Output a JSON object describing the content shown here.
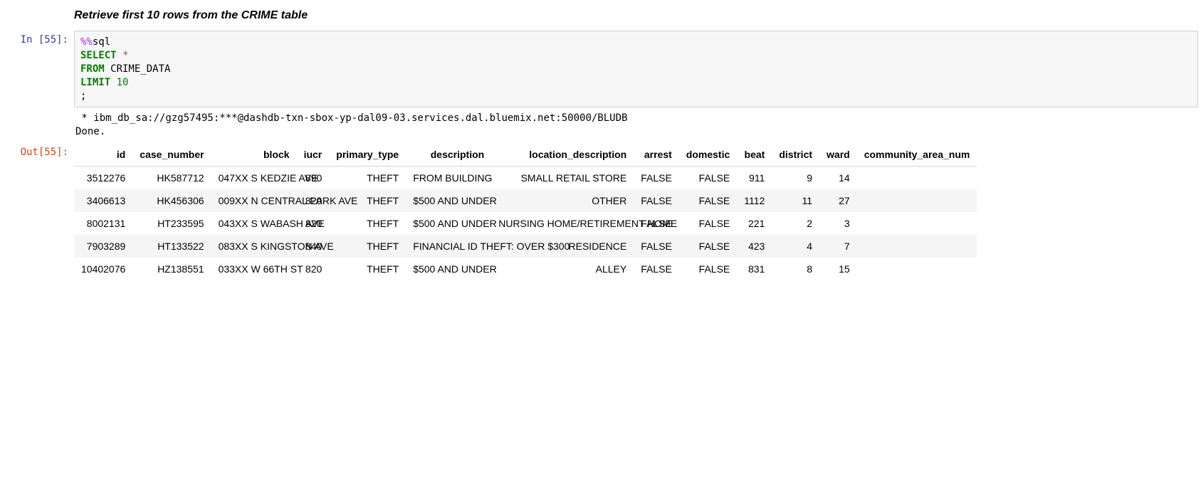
{
  "markdown": {
    "heading": "Retrieve first 10 rows from the CRIME table"
  },
  "input_cell": {
    "prompt": "In [55]:",
    "code": {
      "magic": "%%",
      "magic_name": "sql",
      "line2_kw": "SELECT",
      "line2_star": " *",
      "line3_kw": "FROM",
      "line3_rest": " CRIME_DATA",
      "line4_kw": "LIMIT",
      "line4_num": " 10",
      "line5": ";"
    }
  },
  "stdout": {
    "line1": " * ibm_db_sa://gzg57495:***@dashdb-txn-sbox-yp-dal09-03.services.dal.bluemix.net:50000/BLUDB",
    "line2": "Done."
  },
  "output_cell": {
    "prompt": "Out[55]:",
    "table": {
      "columns": [
        "id",
        "case_number",
        "block",
        "iucr",
        "primary_type",
        "description",
        "location_description",
        "arrest",
        "domestic",
        "beat",
        "district",
        "ward",
        "community_area_num"
      ],
      "rows": [
        {
          "id": "3512276",
          "case_number": "HK587712",
          "block": "047XX S KEDZIE AVE",
          "iucr": "890",
          "primary_type": "THEFT",
          "description": "FROM BUILDING",
          "location_description": "SMALL RETAIL STORE",
          "arrest": "FALSE",
          "domestic": "FALSE",
          "beat": "911",
          "district": "9",
          "ward": "14",
          "community_area_num": ""
        },
        {
          "id": "3406613",
          "case_number": "HK456306",
          "block": "009XX N CENTRAL PARK AVE",
          "iucr": "820",
          "primary_type": "THEFT",
          "description": "$500 AND UNDER",
          "location_description": "OTHER",
          "arrest": "FALSE",
          "domestic": "FALSE",
          "beat": "1112",
          "district": "11",
          "ward": "27",
          "community_area_num": ""
        },
        {
          "id": "8002131",
          "case_number": "HT233595",
          "block": "043XX S WABASH AVE",
          "iucr": "820",
          "primary_type": "THEFT",
          "description": "$500 AND UNDER",
          "location_description": "NURSING HOME/RETIREMENT HOME",
          "arrest": "FALSE",
          "domestic": "FALSE",
          "beat": "221",
          "district": "2",
          "ward": "3",
          "community_area_num": ""
        },
        {
          "id": "7903289",
          "case_number": "HT133522",
          "block": "083XX S KINGSTON AVE",
          "iucr": "840",
          "primary_type": "THEFT",
          "description": "FINANCIAL ID THEFT: OVER $300",
          "location_description": "RESIDENCE",
          "arrest": "FALSE",
          "domestic": "FALSE",
          "beat": "423",
          "district": "4",
          "ward": "7",
          "community_area_num": ""
        },
        {
          "id": "10402076",
          "case_number": "HZ138551",
          "block": "033XX W 66TH ST",
          "iucr": "820",
          "primary_type": "THEFT",
          "description": "$500 AND UNDER",
          "location_description": "ALLEY",
          "arrest": "FALSE",
          "domestic": "FALSE",
          "beat": "831",
          "district": "8",
          "ward": "15",
          "community_area_num": ""
        }
      ]
    }
  },
  "style": {
    "in_prompt_color": "#303f9f",
    "out_prompt_color": "#d84315",
    "code_bg": "#f7f7f7",
    "code_border": "#cfcfcf",
    "row_stripe": "#f5f5f5",
    "header_border": "#d4d4d4",
    "font_mono": "monospace",
    "font_body": "Helvetica Neue"
  }
}
